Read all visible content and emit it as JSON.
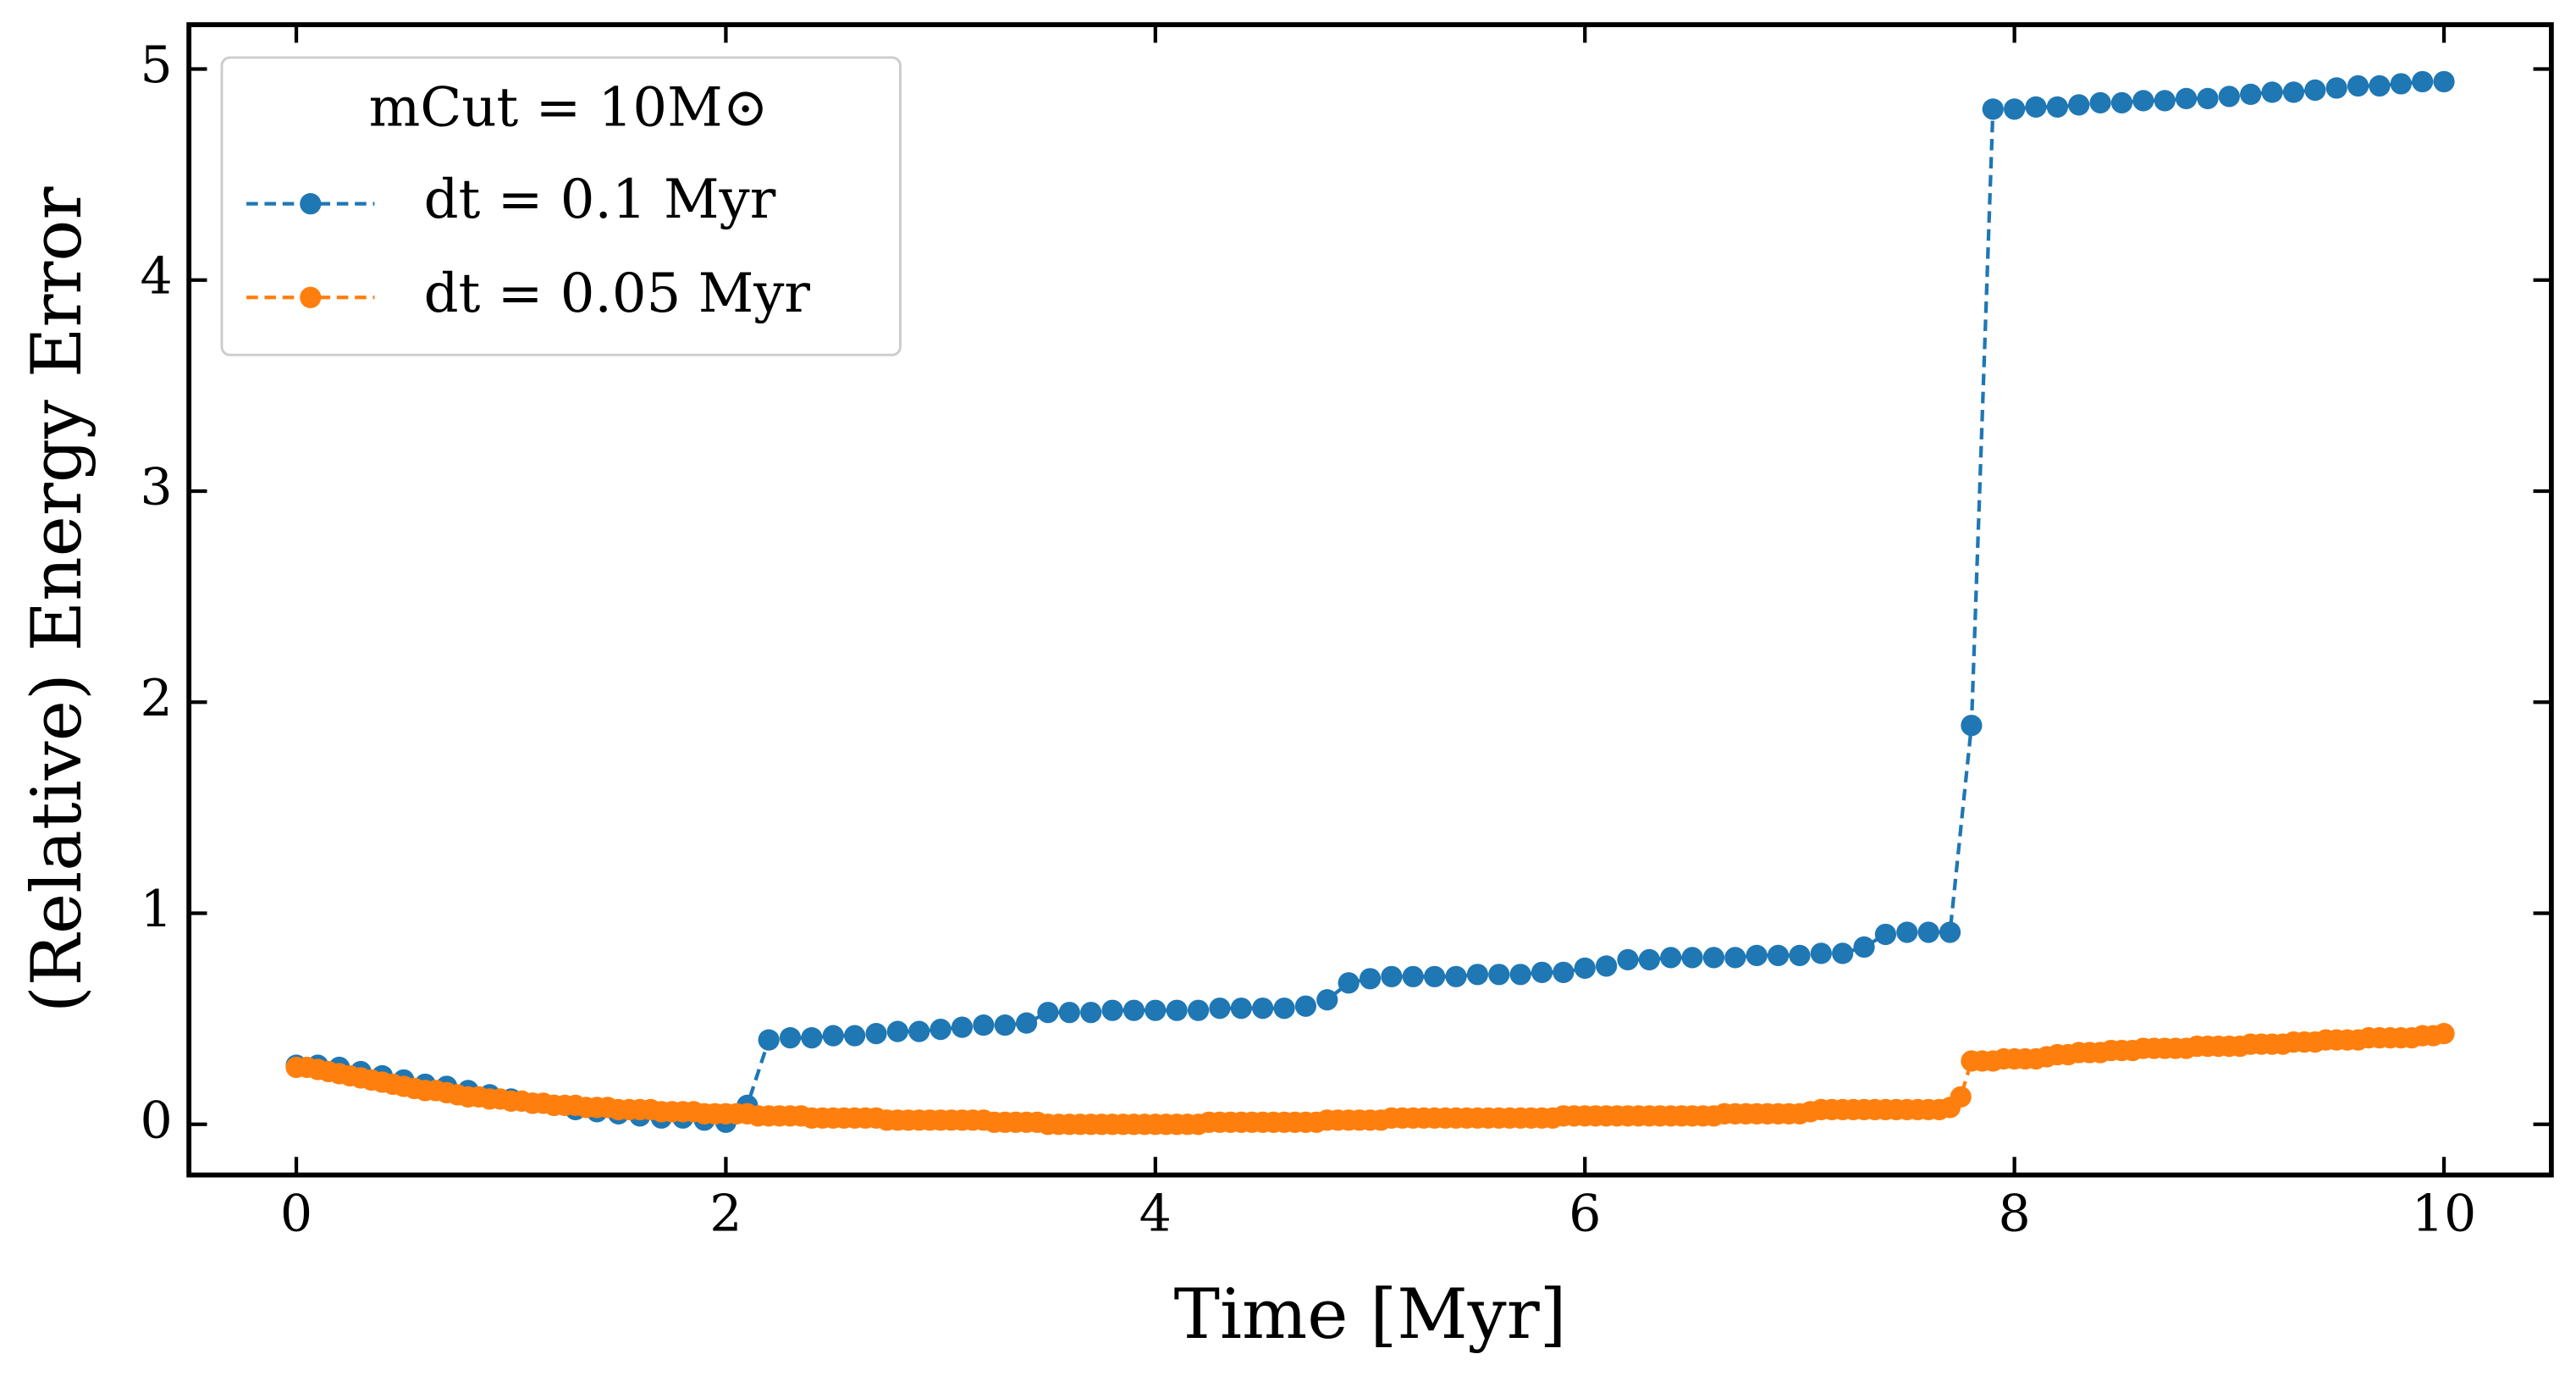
{
  "chart_data": {
    "type": "line",
    "xlabel": "Time [Myr]",
    "ylabel": "(Relative) Energy Error",
    "legend_title": "mCut = 10M⊙",
    "legend": "upper left",
    "linestyle": "dashed",
    "marker": "circle",
    "xlim": [
      -0.5,
      10.5
    ],
    "ylim": [
      -0.24,
      5.21
    ],
    "xticks": [
      0,
      2,
      4,
      6,
      8,
      10
    ],
    "yticks": [
      0,
      1,
      2,
      3,
      4,
      5
    ],
    "series": [
      {
        "name": "dt = 0.1 Myr",
        "color": "#1f77b4",
        "x": [
          0,
          0.1,
          0.2,
          0.3,
          0.4,
          0.5,
          0.6,
          0.7,
          0.8,
          0.9,
          1,
          1.1,
          1.2,
          1.3,
          1.4,
          1.5,
          1.6,
          1.7,
          1.8,
          1.9,
          2,
          2.1,
          2.2,
          2.3,
          2.4,
          2.5,
          2.6,
          2.7,
          2.8,
          2.9,
          3,
          3.1,
          3.2,
          3.3,
          3.4,
          3.5,
          3.6,
          3.7,
          3.8,
          3.9,
          4,
          4.1,
          4.2,
          4.3,
          4.4,
          4.5,
          4.6,
          4.7,
          4.8,
          4.9,
          5,
          5.1,
          5.2,
          5.3,
          5.4,
          5.5,
          5.6,
          5.7,
          5.8,
          5.9,
          6,
          6.1,
          6.2,
          6.3,
          6.4,
          6.5,
          6.6,
          6.7,
          6.8,
          6.9,
          7,
          7.1,
          7.2,
          7.3,
          7.4,
          7.5,
          7.6,
          7.7,
          7.8,
          7.9,
          8,
          8.1,
          8.2,
          8.3,
          8.4,
          8.5,
          8.6,
          8.7,
          8.8,
          8.9,
          9,
          9.1,
          9.2,
          9.3,
          9.4,
          9.5,
          9.6,
          9.7,
          9.8,
          9.9,
          10
        ],
        "values": [
          0.28,
          0.28,
          0.27,
          0.25,
          0.23,
          0.21,
          0.19,
          0.18,
          0.16,
          0.14,
          0.12,
          0.1,
          0.09,
          0.07,
          0.06,
          0.05,
          0.04,
          0.03,
          0.03,
          0.02,
          0.01,
          0.09,
          0.4,
          0.41,
          0.41,
          0.42,
          0.42,
          0.43,
          0.44,
          0.44,
          0.45,
          0.46,
          0.47,
          0.47,
          0.48,
          0.53,
          0.53,
          0.53,
          0.54,
          0.54,
          0.54,
          0.54,
          0.54,
          0.55,
          0.55,
          0.55,
          0.55,
          0.56,
          0.59,
          0.67,
          0.69,
          0.7,
          0.7,
          0.7,
          0.7,
          0.71,
          0.71,
          0.71,
          0.72,
          0.72,
          0.74,
          0.75,
          0.78,
          0.78,
          0.79,
          0.79,
          0.79,
          0.79,
          0.8,
          0.8,
          0.8,
          0.81,
          0.81,
          0.84,
          0.9,
          0.91,
          0.91,
          0.91,
          1.89,
          4.81,
          4.81,
          4.82,
          4.82,
          4.83,
          4.84,
          4.84,
          4.85,
          4.85,
          4.86,
          4.86,
          4.87,
          4.88,
          4.89,
          4.89,
          4.9,
          4.91,
          4.92,
          4.92,
          4.93,
          4.94,
          4.94
        ]
      },
      {
        "name": "dt = 0.05 Myr",
        "color": "#ff7f0e",
        "x": [
          0,
          0.05,
          0.1,
          0.15,
          0.2,
          0.25,
          0.3,
          0.35,
          0.4,
          0.45,
          0.5,
          0.55,
          0.6,
          0.65,
          0.7,
          0.75,
          0.8,
          0.85,
          0.9,
          0.95,
          1,
          1.05,
          1.1,
          1.15,
          1.2,
          1.25,
          1.3,
          1.35,
          1.4,
          1.45,
          1.5,
          1.55,
          1.6,
          1.65,
          1.7,
          1.75,
          1.8,
          1.85,
          1.9,
          1.95,
          2,
          2.05,
          2.1,
          2.15,
          2.2,
          2.25,
          2.3,
          2.35,
          2.4,
          2.45,
          2.5,
          2.55,
          2.6,
          2.65,
          2.7,
          2.75,
          2.8,
          2.85,
          2.9,
          2.95,
          3,
          3.05,
          3.1,
          3.15,
          3.2,
          3.25,
          3.3,
          3.35,
          3.4,
          3.45,
          3.5,
          3.55,
          3.6,
          3.65,
          3.7,
          3.75,
          3.8,
          3.85,
          3.9,
          3.95,
          4,
          4.05,
          4.1,
          4.15,
          4.2,
          4.25,
          4.3,
          4.35,
          4.4,
          4.45,
          4.5,
          4.55,
          4.6,
          4.65,
          4.7,
          4.75,
          4.8,
          4.85,
          4.9,
          4.95,
          5,
          5.05,
          5.1,
          5.15,
          5.2,
          5.25,
          5.3,
          5.35,
          5.4,
          5.45,
          5.5,
          5.55,
          5.6,
          5.65,
          5.7,
          5.75,
          5.8,
          5.85,
          5.9,
          5.95,
          6,
          6.05,
          6.1,
          6.15,
          6.2,
          6.25,
          6.3,
          6.35,
          6.4,
          6.45,
          6.5,
          6.55,
          6.6,
          6.65,
          6.7,
          6.75,
          6.8,
          6.85,
          6.9,
          6.95,
          7,
          7.05,
          7.1,
          7.15,
          7.2,
          7.25,
          7.3,
          7.35,
          7.4,
          7.45,
          7.5,
          7.55,
          7.6,
          7.65,
          7.7,
          7.75,
          7.8,
          7.85,
          7.9,
          7.95,
          8,
          8.05,
          8.1,
          8.15,
          8.2,
          8.25,
          8.3,
          8.35,
          8.4,
          8.45,
          8.5,
          8.55,
          8.6,
          8.65,
          8.7,
          8.75,
          8.8,
          8.85,
          8.9,
          8.95,
          9,
          9.05,
          9.1,
          9.15,
          9.2,
          9.25,
          9.3,
          9.35,
          9.4,
          9.45,
          9.5,
          9.55,
          9.6,
          9.65,
          9.7,
          9.75,
          9.8,
          9.85,
          9.9,
          9.95,
          10
        ],
        "values": [
          0.27,
          0.27,
          0.26,
          0.25,
          0.24,
          0.23,
          0.22,
          0.21,
          0.2,
          0.19,
          0.18,
          0.17,
          0.16,
          0.16,
          0.15,
          0.14,
          0.13,
          0.13,
          0.12,
          0.12,
          0.11,
          0.11,
          0.1,
          0.1,
          0.09,
          0.09,
          0.09,
          0.08,
          0.08,
          0.08,
          0.07,
          0.07,
          0.07,
          0.07,
          0.06,
          0.06,
          0.06,
          0.06,
          0.05,
          0.05,
          0.05,
          0.05,
          0.05,
          0.04,
          0.04,
          0.04,
          0.04,
          0.04,
          0.03,
          0.03,
          0.03,
          0.03,
          0.03,
          0.03,
          0.03,
          0.02,
          0.02,
          0.02,
          0.02,
          0.02,
          0.02,
          0.02,
          0.02,
          0.02,
          0.02,
          0.01,
          0.01,
          0.01,
          0.01,
          0.01,
          0.0,
          0.0,
          0.0,
          0.0,
          0.0,
          0.0,
          0.0,
          0.0,
          0.0,
          0.0,
          0.0,
          0.0,
          0.0,
          0.0,
          0.0,
          0.01,
          0.01,
          0.01,
          0.01,
          0.01,
          0.01,
          0.01,
          0.01,
          0.01,
          0.01,
          0.01,
          0.02,
          0.02,
          0.02,
          0.02,
          0.02,
          0.02,
          0.03,
          0.03,
          0.03,
          0.03,
          0.03,
          0.03,
          0.03,
          0.03,
          0.03,
          0.03,
          0.03,
          0.03,
          0.03,
          0.03,
          0.03,
          0.03,
          0.04,
          0.04,
          0.04,
          0.04,
          0.04,
          0.04,
          0.04,
          0.04,
          0.04,
          0.04,
          0.04,
          0.04,
          0.04,
          0.04,
          0.04,
          0.05,
          0.05,
          0.05,
          0.05,
          0.05,
          0.05,
          0.05,
          0.05,
          0.06,
          0.07,
          0.07,
          0.07,
          0.07,
          0.07,
          0.07,
          0.07,
          0.07,
          0.07,
          0.07,
          0.07,
          0.07,
          0.08,
          0.13,
          0.3,
          0.3,
          0.3,
          0.31,
          0.31,
          0.31,
          0.31,
          0.32,
          0.33,
          0.33,
          0.34,
          0.34,
          0.34,
          0.35,
          0.35,
          0.35,
          0.36,
          0.36,
          0.36,
          0.36,
          0.36,
          0.37,
          0.37,
          0.37,
          0.37,
          0.37,
          0.38,
          0.38,
          0.38,
          0.38,
          0.39,
          0.39,
          0.39,
          0.4,
          0.4,
          0.4,
          0.4,
          0.41,
          0.41,
          0.41,
          0.41,
          0.41,
          0.42,
          0.42,
          0.43
        ]
      }
    ]
  }
}
